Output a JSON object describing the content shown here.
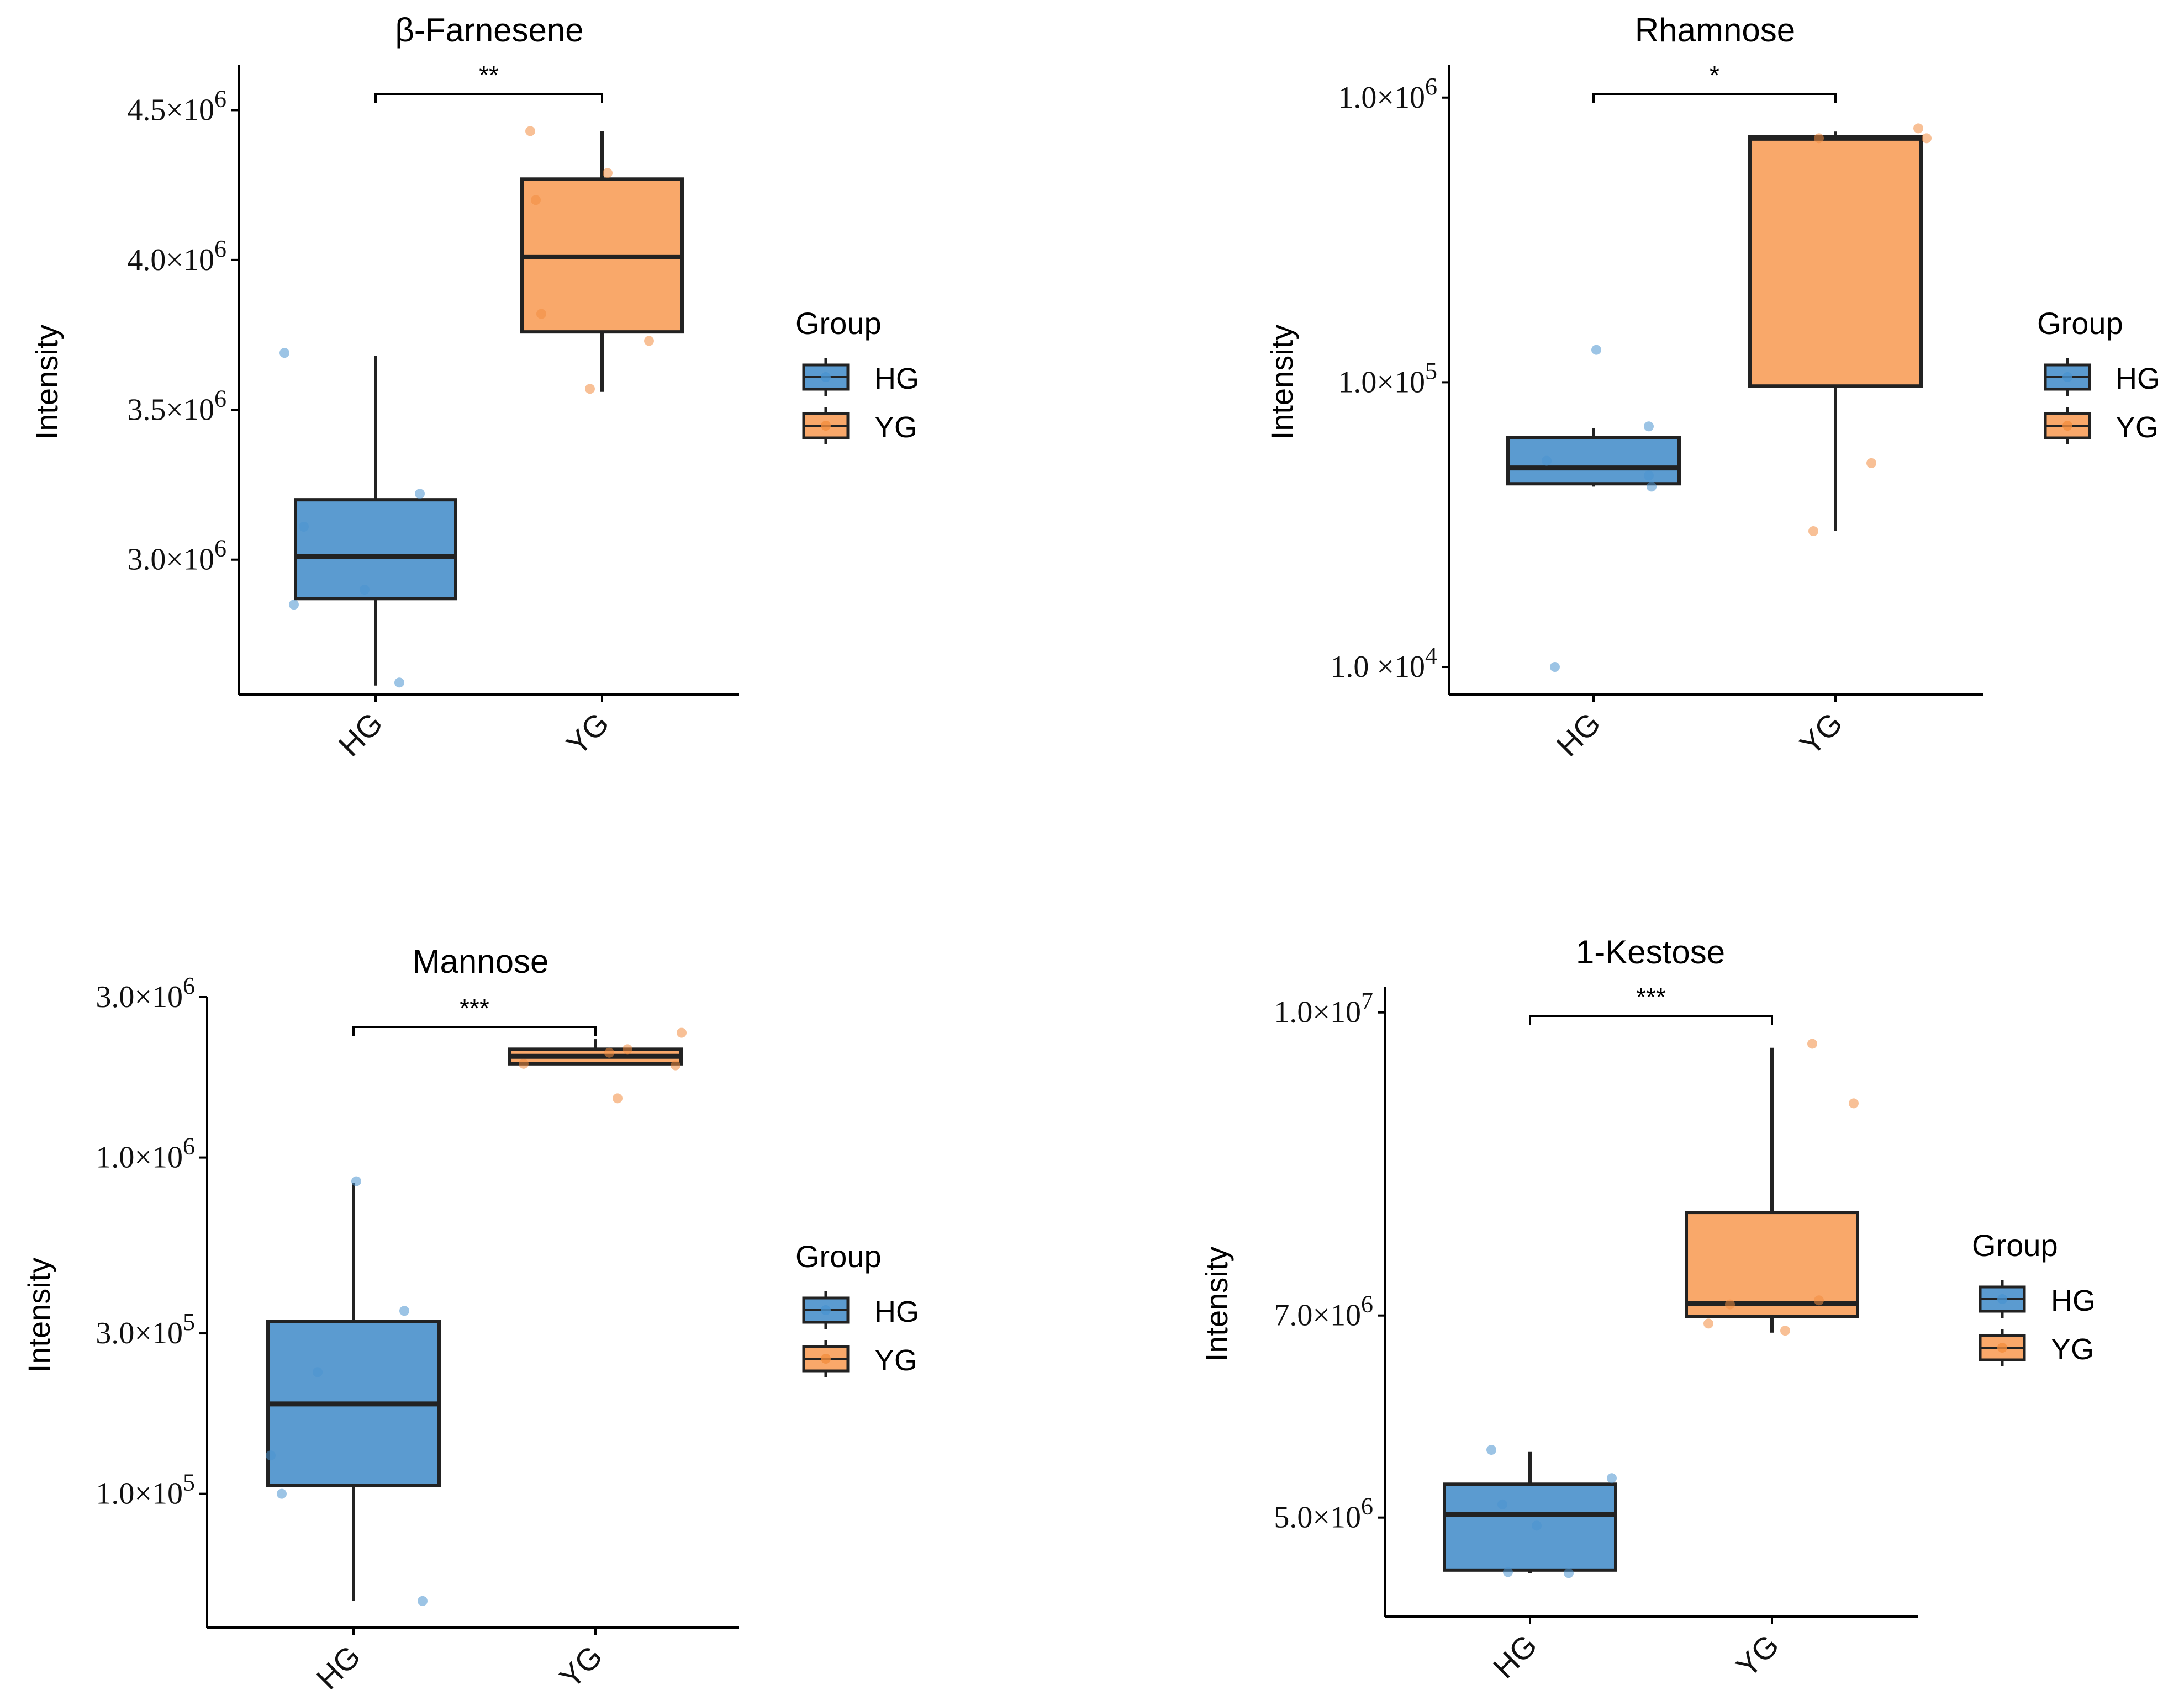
{
  "colors": {
    "HG": "#5b9bd0",
    "YG": "#f9a86a",
    "HG_point": "#4a93cf",
    "YG_point": "#f28d3f",
    "line": "#222222"
  },
  "legend": {
    "title": "Group",
    "items": [
      "HG",
      "YG"
    ]
  },
  "chart_data": [
    {
      "type": "boxplot",
      "title": "β-Farnesene",
      "ylabel": "Intensity",
      "categories": [
        "HG",
        "YG"
      ],
      "scale": "linear",
      "ylim": [
        2550000,
        4650000
      ],
      "yticks": [
        3000000,
        3500000,
        4000000,
        4500000
      ],
      "ytick_labels": [
        {
          "m": "3.0×10",
          "e": "6"
        },
        {
          "m": "3.5×10",
          "e": "6"
        },
        {
          "m": "4.0×10",
          "e": "6"
        },
        {
          "m": "4.5×10",
          "e": "6"
        }
      ],
      "significance": "**",
      "series": [
        {
          "name": "HG",
          "min": 2580000,
          "q1": 2870000,
          "median": 3010000,
          "q3": 3200000,
          "max": 3680000,
          "points": [
            3690000,
            3110000,
            2850000,
            2900000,
            2590000,
            3220000
          ]
        },
        {
          "name": "YG",
          "min": 3560000,
          "q1": 3760000,
          "median": 4010000,
          "q3": 4270000,
          "max": 4430000,
          "points": [
            4430000,
            4200000,
            3820000,
            3570000,
            3730000,
            4290000
          ]
        }
      ]
    },
    {
      "type": "boxplot",
      "title": "Rhamnose",
      "ylabel": "Intensity",
      "categories": [
        "HG",
        "YG"
      ],
      "scale": "log10",
      "ylim": [
        8000,
        1300000
      ],
      "yticks": [
        10000,
        100000,
        1000000
      ],
      "ytick_labels": [
        {
          "m": "1.0 ×10",
          "e": "4"
        },
        {
          "m": "1.0×10",
          "e": "5"
        },
        {
          "m": "1.0×10",
          "e": "6"
        }
      ],
      "significance": "*",
      "series": [
        {
          "name": "HG",
          "min": 43000,
          "q1": 44000,
          "median": 50000,
          "q3": 64000,
          "max": 69000,
          "points": [
            130000,
            53000,
            70000,
            47000,
            43000,
            10000
          ]
        },
        {
          "name": "YG",
          "min": 30000,
          "q1": 97000,
          "median": 720000,
          "q3": 730000,
          "max": 760000,
          "points": [
            720000,
            780000,
            720000,
            52000,
            30000
          ]
        }
      ]
    },
    {
      "type": "boxplot",
      "title": "Mannose",
      "ylabel": "Intensity",
      "categories": [
        "HG",
        "YG"
      ],
      "scale": "log10",
      "ylim": [
        40000,
        3000000
      ],
      "yticks": [
        100000,
        300000,
        1000000,
        3000000
      ],
      "ytick_labels": [
        {
          "m": "1.0×10",
          "e": "5"
        },
        {
          "m": "3.0×10",
          "e": "5"
        },
        {
          "m": "1.0×10",
          "e": "6"
        },
        {
          "m": "3.0×10",
          "e": "6"
        }
      ],
      "significance": "***",
      "series": [
        {
          "name": "HG",
          "min": 48000,
          "q1": 106000,
          "median": 185000,
          "q3": 325000,
          "max": 840000,
          "points": [
            850000,
            350000,
            230000,
            130000,
            100000,
            48000
          ]
        },
        {
          "name": "YG",
          "min": 1900000,
          "q1": 1900000,
          "median": 2000000,
          "q3": 2100000,
          "max": 2250000,
          "points": [
            2350000,
            2050000,
            2100000,
            1900000,
            1880000,
            1500000
          ]
        }
      ]
    },
    {
      "type": "boxplot",
      "title": "1-Kestose",
      "ylabel": "Intensity",
      "categories": [
        "HG",
        "YG"
      ],
      "scale": "linear",
      "ylim": [
        4020000,
        10250000
      ],
      "yticks": [
        5000000,
        7000000,
        10000000
      ],
      "ytick_labels": [
        {
          "m": "5.0×10",
          "e": "6"
        },
        {
          "m": "7.0×10",
          "e": "6"
        },
        {
          "m": "1.0×10",
          "e": "7"
        }
      ],
      "significance": "***",
      "series": [
        {
          "name": "HG",
          "min": 4450000,
          "q1": 4480000,
          "median": 5030000,
          "q3": 5330000,
          "max": 5650000,
          "points": [
            5670000,
            5130000,
            4920000,
            5390000,
            4460000,
            4450000
          ]
        },
        {
          "name": "YG",
          "min": 6830000,
          "q1": 6990000,
          "median": 7120000,
          "q3": 8020000,
          "max": 9650000,
          "points": [
            9690000,
            9100000,
            7150000,
            7110000,
            6920000,
            6850000
          ]
        }
      ]
    }
  ]
}
